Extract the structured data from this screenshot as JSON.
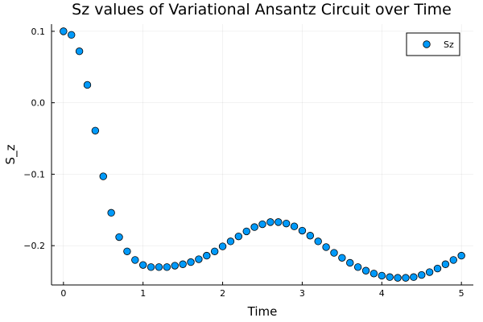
{
  "chart_data": {
    "type": "scatter",
    "title": "Sz values of Variational Ansantz Circuit over Time",
    "xlabel": "Time",
    "ylabel": "S_z",
    "xlim": [
      -0.15,
      5.15
    ],
    "ylim": [
      -0.255,
      0.11
    ],
    "xticks": [
      0,
      1,
      2,
      3,
      4,
      5
    ],
    "xtick_labels": [
      "0",
      "1",
      "2",
      "3",
      "4",
      "5"
    ],
    "yticks": [
      0.1,
      0.0,
      -0.1,
      -0.2
    ],
    "ytick_labels": [
      "0.1",
      "0.0",
      "−0.1",
      "−0.2"
    ],
    "grid": true,
    "legend_position": "top-right",
    "series": [
      {
        "name": "Sz",
        "color": "#009AFA",
        "x": [
          0.0,
          0.1,
          0.2,
          0.3,
          0.4,
          0.5,
          0.6,
          0.7,
          0.8,
          0.9,
          1.0,
          1.1,
          1.2,
          1.3,
          1.4,
          1.5,
          1.6,
          1.7,
          1.8,
          1.9,
          2.0,
          2.1,
          2.2,
          2.3,
          2.4,
          2.5,
          2.6,
          2.7,
          2.8,
          2.9,
          3.0,
          3.1,
          3.2,
          3.3,
          3.4,
          3.5,
          3.6,
          3.7,
          3.8,
          3.9,
          4.0,
          4.1,
          4.2,
          4.3,
          4.4,
          4.5,
          4.6,
          4.7,
          4.8,
          4.9,
          5.0
        ],
        "y": [
          0.1,
          0.095,
          0.072,
          0.025,
          -0.039,
          -0.103,
          -0.154,
          -0.188,
          -0.208,
          -0.22,
          -0.227,
          -0.23,
          -0.23,
          -0.23,
          -0.228,
          -0.226,
          -0.223,
          -0.219,
          -0.214,
          -0.208,
          -0.201,
          -0.194,
          -0.187,
          -0.18,
          -0.174,
          -0.17,
          -0.167,
          -0.167,
          -0.169,
          -0.173,
          -0.179,
          -0.186,
          -0.194,
          -0.202,
          -0.21,
          -0.217,
          -0.224,
          -0.23,
          -0.235,
          -0.239,
          -0.242,
          -0.244,
          -0.245,
          -0.245,
          -0.244,
          -0.241,
          -0.237,
          -0.232,
          -0.226,
          -0.22,
          -0.214
        ]
      }
    ]
  }
}
